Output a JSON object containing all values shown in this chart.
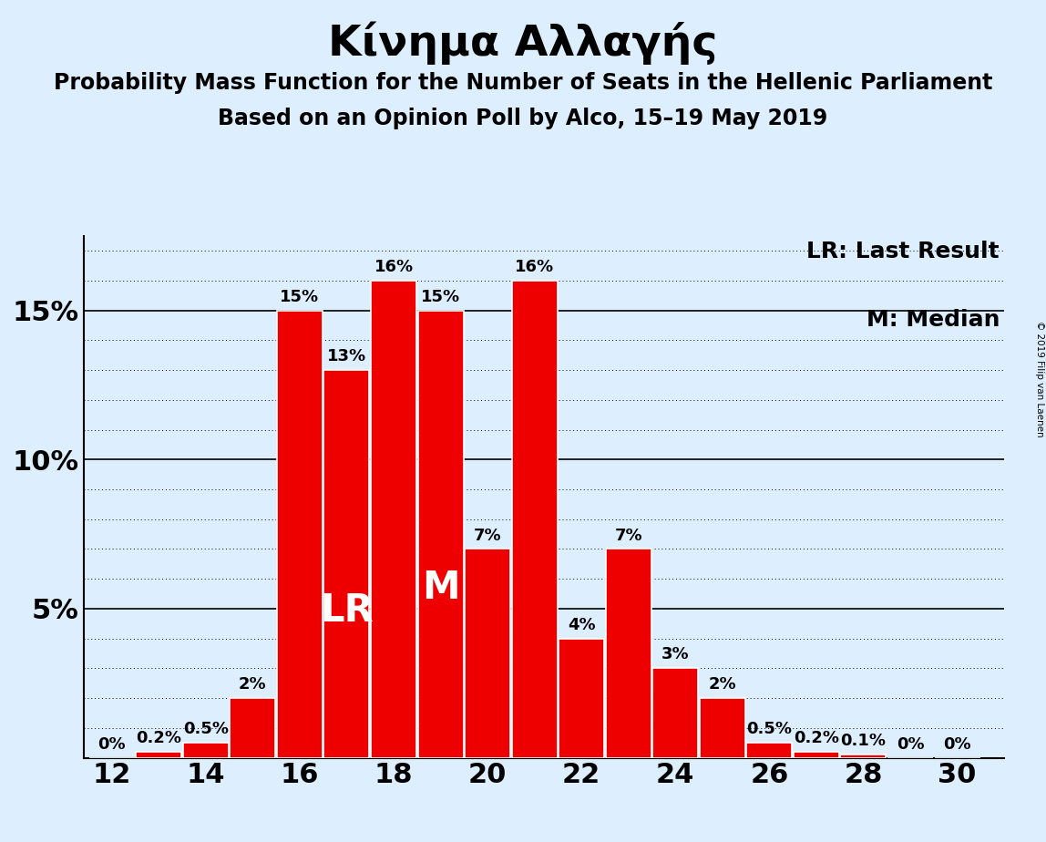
{
  "title": "Κίνημα Αλλαγής",
  "subtitle1": "Probability Mass Function for the Number of Seats in the Hellenic Parliament",
  "subtitle2": "Based on an Opinion Poll by Alco, 15–19 May 2019",
  "copyright": "© 2019 Filip van Laenen",
  "seats": [
    12,
    13,
    14,
    15,
    16,
    17,
    18,
    19,
    20,
    21,
    22,
    23,
    24,
    25,
    26,
    27,
    28,
    29,
    30
  ],
  "probabilities": [
    0.0,
    0.2,
    0.5,
    2.0,
    15.0,
    13.0,
    16.0,
    15.0,
    7.0,
    16.0,
    4.0,
    7.0,
    3.0,
    2.0,
    0.5,
    0.2,
    0.1,
    0.0,
    0.0
  ],
  "labels": [
    "0%",
    "0.2%",
    "0.5%",
    "2%",
    "15%",
    "13%",
    "16%",
    "15%",
    "7%",
    "16%",
    "4%",
    "7%",
    "3%",
    "2%",
    "0.5%",
    "0.2%",
    "0.1%",
    "0%",
    "0%"
  ],
  "bar_color": "#EE0000",
  "bg_color": "#DDEEFF",
  "lr_seat": 17,
  "median_seat": 19,
  "lr_label": "LR",
  "median_label": "M",
  "legend_lr": "LR: Last Result",
  "legend_m": "M: Median",
  "yticks": [
    0,
    5,
    10,
    15
  ],
  "ytick_labels": [
    "",
    "5%",
    "10%",
    "15%"
  ],
  "xticks": [
    12,
    14,
    16,
    18,
    20,
    22,
    24,
    26,
    28,
    30
  ],
  "ymax": 17.5,
  "label_fontsize": 13,
  "title_fontsize": 34,
  "subtitle_fontsize": 17,
  "axis_fontsize": 22,
  "legend_fontsize": 18,
  "lr_label_fontsize": 30,
  "m_label_fontsize": 30,
  "bar_width": 0.97
}
